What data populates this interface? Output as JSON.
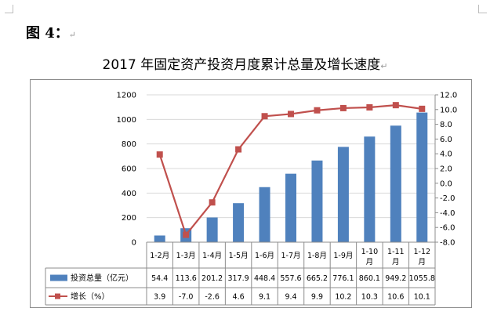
{
  "figure_label": "图 4：",
  "return_mark": "↵",
  "chart_data": {
    "type": "bar",
    "title": "2017 年固定资产投资月度累计总量及增长速度",
    "categories": [
      "1-2月",
      "1-3月",
      "1-4月",
      "1-5月",
      "1-6月",
      "1-7月",
      "1-8月",
      "1-9月",
      "1-10月",
      "1-11月",
      "1-12月"
    ],
    "series": [
      {
        "name": "投资总量（亿元）",
        "type": "bar",
        "axis": "left",
        "values": [
          54.4,
          113.6,
          201.2,
          317.9,
          448.4,
          557.6,
          665.2,
          776.1,
          860.1,
          949.2,
          1055.8
        ],
        "labels": [
          "54.4",
          "113.6",
          "201.2",
          "317.9",
          "448.4",
          "557.6",
          "665.2",
          "776.1",
          "860.1",
          "949.2",
          "1055.8"
        ],
        "color": "#4f81bd"
      },
      {
        "name": "增长（%）",
        "type": "line",
        "axis": "right",
        "values": [
          3.9,
          -7.0,
          -2.6,
          4.6,
          9.1,
          9.4,
          9.9,
          10.2,
          10.3,
          10.6,
          10.1
        ],
        "labels": [
          "3.9",
          "-7.0",
          "-2.6",
          "4.6",
          "9.1",
          "9.4",
          "9.9",
          "10.2",
          "10.3",
          "10.6",
          "10.1"
        ],
        "color": "#c0504d"
      }
    ],
    "y_left": {
      "range": [
        0,
        1200
      ],
      "ticks": [
        "0",
        "200",
        "400",
        "600",
        "800",
        "1000",
        "1200"
      ]
    },
    "y_right": {
      "range": [
        -8,
        12
      ],
      "ticks": [
        "-8.0",
        "-6.0",
        "-4.0",
        "-2.0",
        "0.0",
        "2.0",
        "4.0",
        "6.0",
        "8.0",
        "10.0",
        "12.0"
      ]
    },
    "grid": true,
    "legend": "data table below chart"
  }
}
